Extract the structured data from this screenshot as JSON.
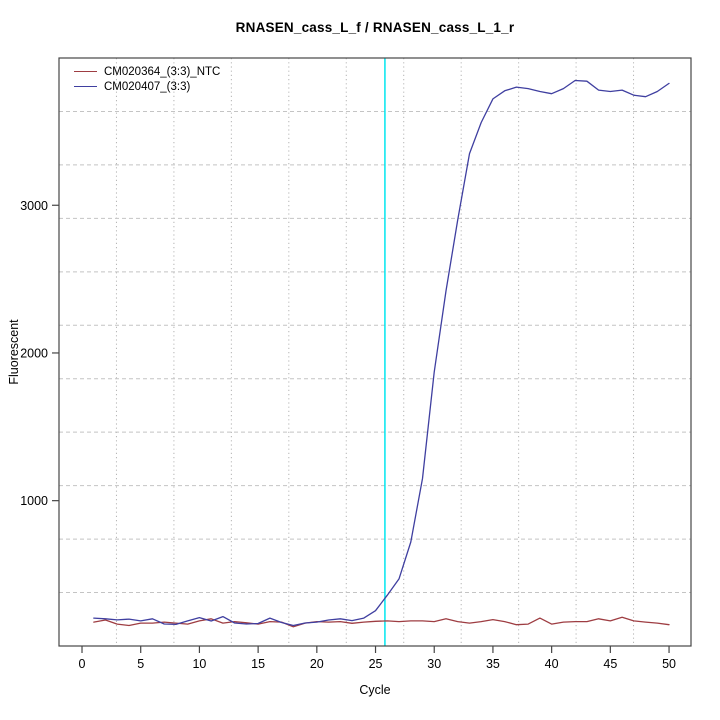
{
  "window": {
    "background": "#ffffff"
  },
  "chart_data": {
    "type": "line",
    "title": "RNASEN_cass_L_f / RNASEN_cass_L_1_r",
    "xlabel": "Cycle",
    "ylabel": "Fluorescent",
    "x_ticks": [
      0,
      5,
      10,
      15,
      20,
      25,
      30,
      35,
      40,
      45,
      50
    ],
    "y_ticks": [
      1000,
      2000,
      3000
    ],
    "xlim": [
      -1.96,
      51.87
    ],
    "ylim": [
      16,
      3997
    ],
    "grid": {
      "divisions": 11,
      "h_color": "#c4c4c4",
      "v_color": "#b4b4b4",
      "h_dash": "4 3",
      "v_dash": "1.2 3"
    },
    "legend_position": "top-left",
    "threshold_line": {
      "x": 25.8,
      "color": "#00e6ee"
    },
    "axis_color": "#454545",
    "cycles": [
      1,
      2,
      3,
      4,
      5,
      6,
      7,
      8,
      9,
      10,
      11,
      12,
      13,
      14,
      15,
      16,
      17,
      18,
      19,
      20,
      21,
      22,
      23,
      24,
      25,
      26,
      27,
      28,
      29,
      30,
      31,
      32,
      33,
      34,
      35,
      36,
      37,
      38,
      39,
      40,
      41,
      42,
      43,
      44,
      45,
      46,
      47,
      48,
      49,
      50
    ],
    "series": [
      {
        "name": "CM020364_(3:3)_NTC",
        "color": "#9e3d42",
        "values": [
          178,
          192,
          164,
          155,
          171,
          171,
          178,
          171,
          164,
          186,
          200,
          171,
          181,
          173,
          164,
          181,
          178,
          146,
          171,
          181,
          178,
          181,
          170,
          178,
          183,
          186,
          181,
          186,
          186,
          181,
          200,
          181,
          171,
          181,
          195,
          181,
          160,
          164,
          205,
          164,
          178,
          181,
          181,
          200,
          186,
          210,
          186,
          178,
          171,
          160
        ]
      },
      {
        "name": "CM020407_(3:3)",
        "color": "#3f3fa0",
        "values": [
          205,
          200,
          193,
          198,
          186,
          200,
          165,
          162,
          186,
          208,
          185,
          215,
          172,
          165,
          168,
          205,
          175,
          155,
          172,
          178,
          192,
          200,
          188,
          205,
          255,
          360,
          470,
          720,
          1150,
          1870,
          2420,
          2900,
          3350,
          3560,
          3720,
          3775,
          3800,
          3790,
          3770,
          3755,
          3790,
          3845,
          3840,
          3780,
          3770,
          3780,
          3745,
          3735,
          3770,
          3825
        ]
      }
    ]
  }
}
